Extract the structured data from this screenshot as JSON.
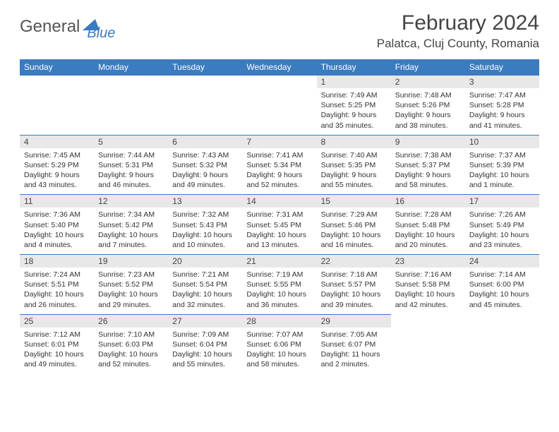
{
  "brand": {
    "part1": "General",
    "part2": "Blue"
  },
  "title": "February 2024",
  "location": "Palatca, Cluj County, Romania",
  "header_color": "#3b7bbf",
  "daynum_bg": "#e8e8e8",
  "weekdays": [
    "Sunday",
    "Monday",
    "Tuesday",
    "Wednesday",
    "Thursday",
    "Friday",
    "Saturday"
  ],
  "weeks": [
    [
      null,
      null,
      null,
      null,
      {
        "n": "1",
        "sunrise": "7:49 AM",
        "sunset": "5:25 PM",
        "daylight": "9 hours and 35 minutes."
      },
      {
        "n": "2",
        "sunrise": "7:48 AM",
        "sunset": "5:26 PM",
        "daylight": "9 hours and 38 minutes."
      },
      {
        "n": "3",
        "sunrise": "7:47 AM",
        "sunset": "5:28 PM",
        "daylight": "9 hours and 41 minutes."
      }
    ],
    [
      {
        "n": "4",
        "sunrise": "7:45 AM",
        "sunset": "5:29 PM",
        "daylight": "9 hours and 43 minutes."
      },
      {
        "n": "5",
        "sunrise": "7:44 AM",
        "sunset": "5:31 PM",
        "daylight": "9 hours and 46 minutes."
      },
      {
        "n": "6",
        "sunrise": "7:43 AM",
        "sunset": "5:32 PM",
        "daylight": "9 hours and 49 minutes."
      },
      {
        "n": "7",
        "sunrise": "7:41 AM",
        "sunset": "5:34 PM",
        "daylight": "9 hours and 52 minutes."
      },
      {
        "n": "8",
        "sunrise": "7:40 AM",
        "sunset": "5:35 PM",
        "daylight": "9 hours and 55 minutes."
      },
      {
        "n": "9",
        "sunrise": "7:38 AM",
        "sunset": "5:37 PM",
        "daylight": "9 hours and 58 minutes."
      },
      {
        "n": "10",
        "sunrise": "7:37 AM",
        "sunset": "5:39 PM",
        "daylight": "10 hours and 1 minute."
      }
    ],
    [
      {
        "n": "11",
        "sunrise": "7:36 AM",
        "sunset": "5:40 PM",
        "daylight": "10 hours and 4 minutes."
      },
      {
        "n": "12",
        "sunrise": "7:34 AM",
        "sunset": "5:42 PM",
        "daylight": "10 hours and 7 minutes."
      },
      {
        "n": "13",
        "sunrise": "7:32 AM",
        "sunset": "5:43 PM",
        "daylight": "10 hours and 10 minutes."
      },
      {
        "n": "14",
        "sunrise": "7:31 AM",
        "sunset": "5:45 PM",
        "daylight": "10 hours and 13 minutes."
      },
      {
        "n": "15",
        "sunrise": "7:29 AM",
        "sunset": "5:46 PM",
        "daylight": "10 hours and 16 minutes."
      },
      {
        "n": "16",
        "sunrise": "7:28 AM",
        "sunset": "5:48 PM",
        "daylight": "10 hours and 20 minutes."
      },
      {
        "n": "17",
        "sunrise": "7:26 AM",
        "sunset": "5:49 PM",
        "daylight": "10 hours and 23 minutes."
      }
    ],
    [
      {
        "n": "18",
        "sunrise": "7:24 AM",
        "sunset": "5:51 PM",
        "daylight": "10 hours and 26 minutes."
      },
      {
        "n": "19",
        "sunrise": "7:23 AM",
        "sunset": "5:52 PM",
        "daylight": "10 hours and 29 minutes."
      },
      {
        "n": "20",
        "sunrise": "7:21 AM",
        "sunset": "5:54 PM",
        "daylight": "10 hours and 32 minutes."
      },
      {
        "n": "21",
        "sunrise": "7:19 AM",
        "sunset": "5:55 PM",
        "daylight": "10 hours and 36 minutes."
      },
      {
        "n": "22",
        "sunrise": "7:18 AM",
        "sunset": "5:57 PM",
        "daylight": "10 hours and 39 minutes."
      },
      {
        "n": "23",
        "sunrise": "7:16 AM",
        "sunset": "5:58 PM",
        "daylight": "10 hours and 42 minutes."
      },
      {
        "n": "24",
        "sunrise": "7:14 AM",
        "sunset": "6:00 PM",
        "daylight": "10 hours and 45 minutes."
      }
    ],
    [
      {
        "n": "25",
        "sunrise": "7:12 AM",
        "sunset": "6:01 PM",
        "daylight": "10 hours and 49 minutes."
      },
      {
        "n": "26",
        "sunrise": "7:10 AM",
        "sunset": "6:03 PM",
        "daylight": "10 hours and 52 minutes."
      },
      {
        "n": "27",
        "sunrise": "7:09 AM",
        "sunset": "6:04 PM",
        "daylight": "10 hours and 55 minutes."
      },
      {
        "n": "28",
        "sunrise": "7:07 AM",
        "sunset": "6:06 PM",
        "daylight": "10 hours and 58 minutes."
      },
      {
        "n": "29",
        "sunrise": "7:05 AM",
        "sunset": "6:07 PM",
        "daylight": "11 hours and 2 minutes."
      },
      null,
      null
    ]
  ],
  "labels": {
    "sunrise": "Sunrise:",
    "sunset": "Sunset:",
    "daylight": "Daylight:"
  }
}
